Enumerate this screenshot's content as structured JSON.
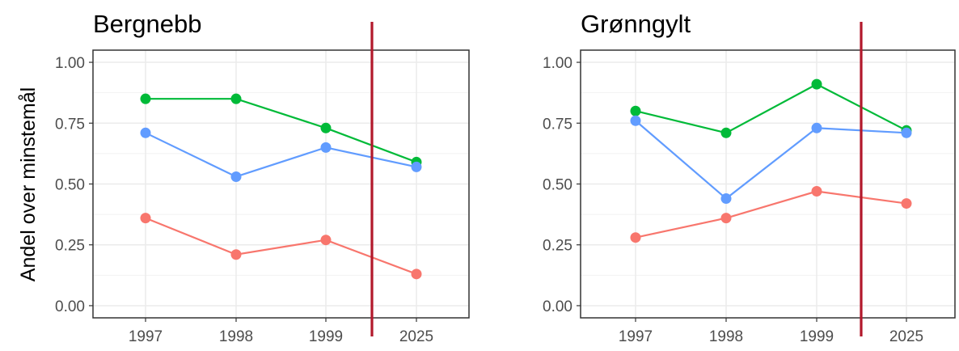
{
  "chart_data": [
    {
      "type": "line",
      "title": "Bergnebb",
      "ylabel": "Andel over minstemål",
      "xlabel": "",
      "categories": [
        "1997",
        "1998",
        "1999",
        "2025"
      ],
      "ylim": [
        -0.05,
        1.05
      ],
      "yticks": [
        "0.00",
        "0.25",
        "0.50",
        "0.75",
        "1.00"
      ],
      "grid": true,
      "legend": "none",
      "marker_between": [
        "1999",
        "2025"
      ],
      "marker_color": "#b2182b",
      "series": [
        {
          "color": "#00ba38",
          "values": [
            0.85,
            0.85,
            0.73,
            0.59
          ]
        },
        {
          "color": "#619cff",
          "values": [
            0.71,
            0.53,
            0.65,
            0.57
          ]
        },
        {
          "color": "#f8766d",
          "values": [
            0.36,
            0.21,
            0.27,
            0.13
          ]
        }
      ]
    },
    {
      "type": "line",
      "title": "Grønngylt",
      "ylabel": "",
      "xlabel": "",
      "categories": [
        "1997",
        "1998",
        "1999",
        "2025"
      ],
      "ylim": [
        -0.05,
        1.05
      ],
      "yticks": [
        "0.00",
        "0.25",
        "0.50",
        "0.75",
        "1.00"
      ],
      "grid": true,
      "legend": "none",
      "marker_between": [
        "1999",
        "2025"
      ],
      "marker_color": "#b2182b",
      "series": [
        {
          "color": "#00ba38",
          "values": [
            0.8,
            0.71,
            0.91,
            0.72
          ]
        },
        {
          "color": "#619cff",
          "values": [
            0.76,
            0.44,
            0.73,
            0.71
          ]
        },
        {
          "color": "#f8766d",
          "values": [
            0.28,
            0.36,
            0.47,
            0.42
          ]
        }
      ]
    }
  ]
}
